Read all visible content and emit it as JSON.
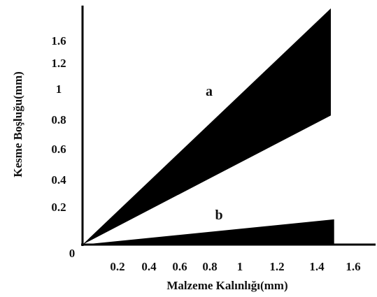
{
  "chart_data": {
    "type": "area",
    "xlabel": "Malzeme Kalınlığı(mm)",
    "ylabel": "Kesme Boşluğu(mm)",
    "origin_label": "0",
    "x_ticks": [
      {
        "value": 0.2,
        "label": "0.2"
      },
      {
        "value": 0.4,
        "label": "0.4"
      },
      {
        "value": 0.6,
        "label": "0.6"
      },
      {
        "value": 0.8,
        "label": "0.8"
      },
      {
        "value": 1.0,
        "label": "1"
      },
      {
        "value": 1.2,
        "label": "1.2"
      },
      {
        "value": 1.4,
        "label": "1.4"
      },
      {
        "value": 1.6,
        "label": "1.6"
      }
    ],
    "y_ticks": [
      {
        "value": 0.2,
        "label": "0.2"
      },
      {
        "value": 0.4,
        "label": "0.4"
      },
      {
        "value": 0.6,
        "label": "0.6"
      },
      {
        "value": 0.8,
        "label": "0.8"
      },
      {
        "value": 1.0,
        "label": "1"
      },
      {
        "value": 1.2,
        "label": "1.2"
      },
      {
        "value": 1.6,
        "label": "1.6"
      }
    ],
    "series": [
      {
        "name": "a",
        "color": "#000000",
        "upper": [
          [
            0,
            0
          ],
          [
            1.5,
            1.5
          ]
        ],
        "lower": [
          [
            0,
            0
          ],
          [
            1.5,
            0.82
          ]
        ]
      },
      {
        "name": "b",
        "color": "#000000",
        "upper": [
          [
            0,
            0
          ],
          [
            1.52,
            0.16
          ]
        ],
        "lower": [
          [
            0,
            0
          ],
          [
            1.52,
            0.0
          ]
        ]
      }
    ]
  }
}
